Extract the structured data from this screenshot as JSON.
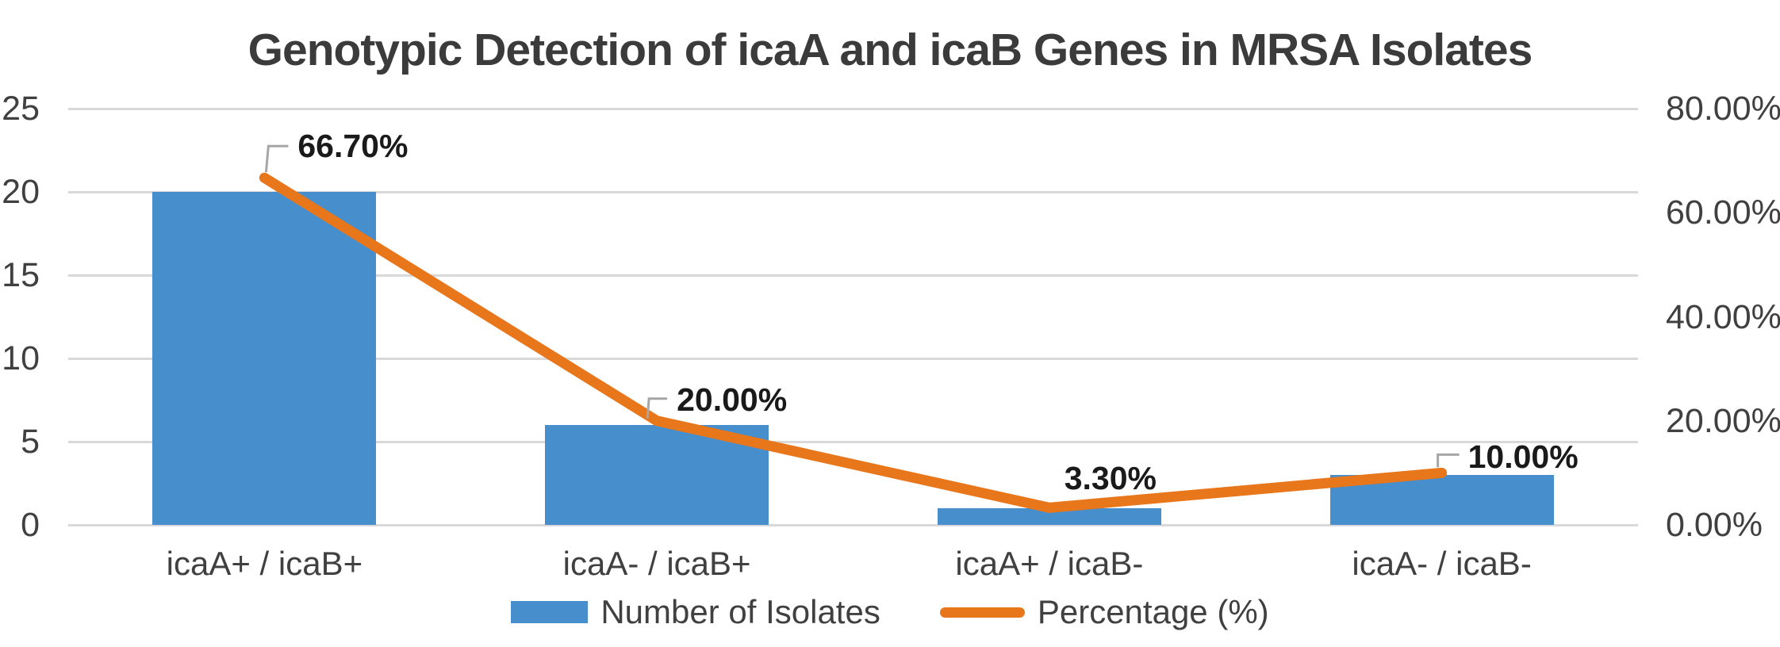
{
  "title": "Genotypic Detection of icaA and icaB Genes in MRSA Isolates",
  "chart_data": {
    "type": "bar",
    "subtype": "combo bar+line, dual axis",
    "categories": [
      "icaA+ / icaB+",
      "icaA- / icaB+",
      "icaA+ / icaB-",
      "icaA- / icaB-"
    ],
    "series": [
      {
        "name": "Number of Isolates",
        "type": "bar",
        "axis": "left",
        "values": [
          20,
          6,
          1,
          3
        ],
        "color": "#478ECC"
      },
      {
        "name": "Percentage (%)",
        "type": "line",
        "axis": "right",
        "values": [
          66.7,
          20.0,
          3.3,
          10.0
        ],
        "data_labels": [
          "66.70%",
          "20.00%",
          "3.30%",
          "10.00%"
        ],
        "color": "#E8761B"
      }
    ],
    "title": "Genotypic Detection of icaA and icaB Genes in MRSA Isolates",
    "xlabel": "",
    "ylabel": "",
    "left_axis": {
      "min": 0,
      "max": 25,
      "ticks": [
        0,
        5,
        10,
        15,
        20,
        25
      ],
      "tick_labels": [
        "0",
        "5",
        "10",
        "15",
        "20",
        "25"
      ]
    },
    "right_axis": {
      "min": 0,
      "max": 80,
      "ticks": [
        0,
        20,
        40,
        60,
        80
      ],
      "tick_labels": [
        "0.00%",
        "20.00%",
        "40.00%",
        "60.00%",
        "80.00%"
      ]
    },
    "grid": true,
    "legend_position": "bottom",
    "colors": {
      "gridline": "#D9D9D9",
      "leader_line": "#A6A6A6",
      "axis_text": "#404040",
      "title_text": "#3B3B3B",
      "data_label_text": "#1A1A1A",
      "background": "#FFFFFF"
    }
  },
  "legend": {
    "items": [
      {
        "label": "Number of Isolates"
      },
      {
        "label": "Percentage (%)"
      }
    ]
  }
}
